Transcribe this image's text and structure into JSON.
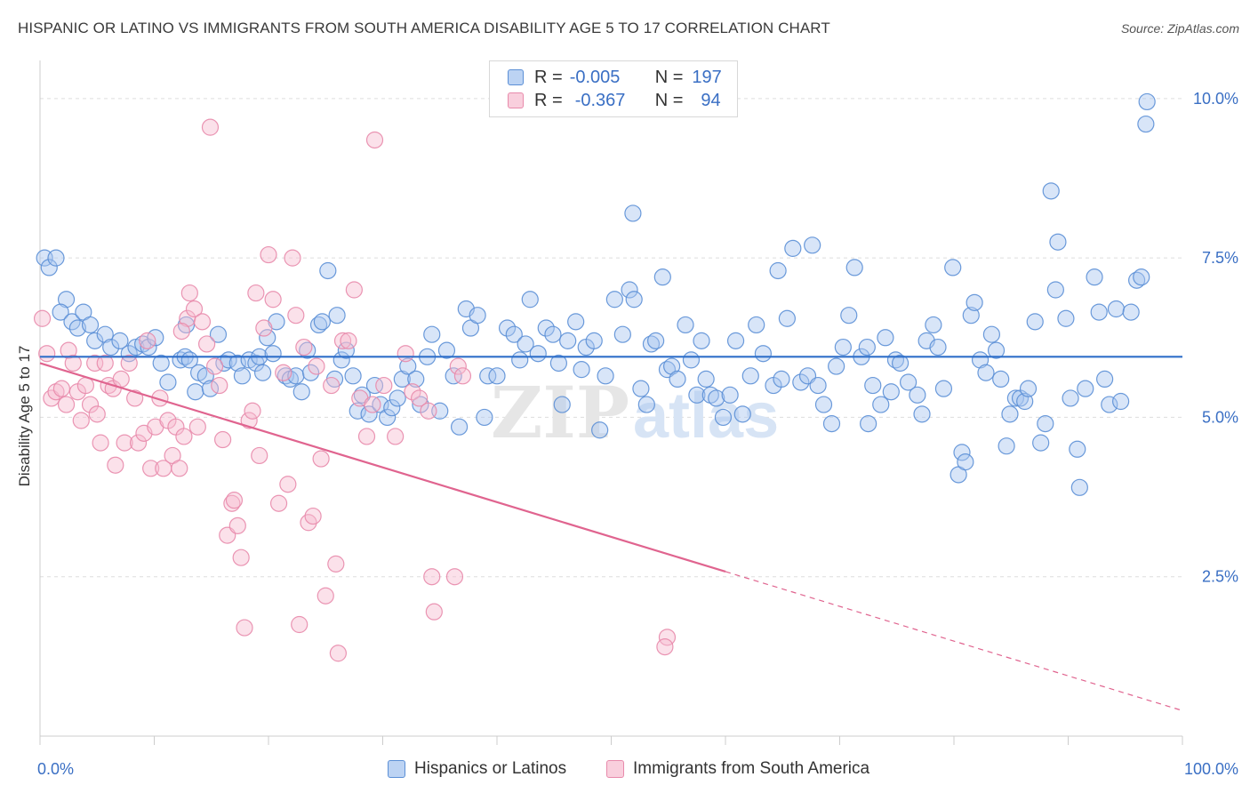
{
  "title": "HISPANIC OR LATINO VS IMMIGRANTS FROM SOUTH AMERICA DISABILITY AGE 5 TO 17 CORRELATION CHART",
  "source": "Source: ZipAtlas.com",
  "watermark": {
    "zip": "ZIP",
    "atlas": "atlas"
  },
  "legend": {
    "rows": [
      {
        "r_label": "R =",
        "r_value": "-0.005",
        "n_label": "N =",
        "n_value": "197"
      },
      {
        "r_label": "R =",
        "r_value": "-0.367",
        "n_label": "N =",
        "n_value": "94"
      }
    ]
  },
  "colors": {
    "blue_fill": "#a9c6f0",
    "blue_stroke": "#5b8fd6",
    "blue_line": "#2f6fc9",
    "pink_fill": "#f7bcd0",
    "pink_stroke": "#e88aab",
    "pink_line": "#e0648f",
    "axis_text": "#3a6fc4",
    "grid": "#dddddd"
  },
  "chart_data": {
    "type": "scatter",
    "title": "HISPANIC OR LATINO VS IMMIGRANTS FROM SOUTH AMERICA DISABILITY AGE 5 TO 17 CORRELATION CHART",
    "xlabel": "",
    "ylabel": "Disability Age 5 to 17",
    "xlim": [
      0,
      100
    ],
    "ylim": [
      0,
      10.5
    ],
    "x_tick_labels": [
      "0.0%",
      "100.0%"
    ],
    "y_ticks": [
      2.5,
      5.0,
      7.5,
      10.0
    ],
    "y_tick_labels": [
      "2.5%",
      "5.0%",
      "7.5%",
      "10.0%"
    ],
    "grid": "horizontal dashed",
    "legend_position": "top-center",
    "series": [
      {
        "name": "Hispanics or Latinos",
        "r": -0.005,
        "n": 197,
        "trend": {
          "x": [
            0,
            100
          ],
          "y": [
            5.95,
            5.95
          ],
          "dashed_from": null
        },
        "points": [
          [
            0.4,
            7.5
          ],
          [
            0.8,
            7.35
          ],
          [
            1.4,
            7.5
          ],
          [
            2.3,
            6.85
          ],
          [
            1.8,
            6.65
          ],
          [
            2.8,
            6.5
          ],
          [
            3.3,
            6.4
          ],
          [
            3.8,
            6.65
          ],
          [
            4.4,
            6.45
          ],
          [
            4.8,
            6.2
          ],
          [
            5.7,
            6.3
          ],
          [
            6.2,
            6.1
          ],
          [
            7.0,
            6.2
          ],
          [
            7.8,
            6.0
          ],
          [
            8.4,
            6.1
          ],
          [
            9.0,
            6.15
          ],
          [
            9.5,
            6.1
          ],
          [
            10.1,
            6.25
          ],
          [
            10.6,
            5.85
          ],
          [
            11.2,
            5.55
          ],
          [
            12.3,
            5.9
          ],
          [
            12.7,
            5.95
          ],
          [
            13.1,
            5.9
          ],
          [
            12.8,
            6.45
          ],
          [
            13.6,
            5.4
          ],
          [
            13.9,
            5.7
          ],
          [
            14.5,
            5.65
          ],
          [
            14.9,
            5.45
          ],
          [
            15.6,
            6.3
          ],
          [
            16.1,
            5.85
          ],
          [
            16.5,
            5.9
          ],
          [
            17.3,
            5.85
          ],
          [
            17.7,
            5.65
          ],
          [
            18.3,
            5.9
          ],
          [
            18.9,
            5.85
          ],
          [
            19.2,
            5.95
          ],
          [
            19.5,
            5.7
          ],
          [
            19.9,
            6.25
          ],
          [
            20.4,
            6.0
          ],
          [
            20.7,
            6.5
          ],
          [
            21.5,
            5.65
          ],
          [
            21.9,
            5.6
          ],
          [
            22.4,
            5.65
          ],
          [
            22.9,
            5.4
          ],
          [
            23.4,
            6.05
          ],
          [
            23.7,
            5.7
          ],
          [
            24.4,
            6.45
          ],
          [
            24.7,
            6.5
          ],
          [
            25.2,
            7.3
          ],
          [
            25.8,
            5.6
          ],
          [
            26.0,
            6.6
          ],
          [
            26.4,
            5.9
          ],
          [
            26.8,
            6.05
          ],
          [
            27.4,
            5.65
          ],
          [
            27.8,
            5.1
          ],
          [
            28.2,
            5.35
          ],
          [
            28.8,
            5.05
          ],
          [
            29.3,
            5.5
          ],
          [
            29.8,
            5.2
          ],
          [
            30.4,
            5.0
          ],
          [
            30.8,
            5.15
          ],
          [
            31.3,
            5.3
          ],
          [
            31.7,
            5.6
          ],
          [
            32.2,
            5.8
          ],
          [
            32.9,
            5.6
          ],
          [
            33.3,
            5.2
          ],
          [
            33.9,
            5.95
          ],
          [
            34.3,
            6.3
          ],
          [
            35.0,
            5.1
          ],
          [
            35.6,
            6.05
          ],
          [
            36.2,
            5.65
          ],
          [
            36.7,
            4.85
          ],
          [
            37.3,
            6.7
          ],
          [
            37.7,
            6.4
          ],
          [
            38.3,
            6.6
          ],
          [
            38.9,
            5.0
          ],
          [
            39.2,
            5.65
          ],
          [
            40.0,
            5.65
          ],
          [
            40.9,
            6.4
          ],
          [
            41.5,
            6.3
          ],
          [
            42.0,
            5.9
          ],
          [
            42.5,
            6.15
          ],
          [
            42.9,
            6.85
          ],
          [
            43.6,
            6.0
          ],
          [
            44.3,
            6.4
          ],
          [
            44.9,
            6.3
          ],
          [
            45.4,
            5.85
          ],
          [
            45.7,
            5.2
          ],
          [
            46.2,
            6.2
          ],
          [
            46.9,
            6.5
          ],
          [
            47.4,
            5.75
          ],
          [
            47.8,
            6.1
          ],
          [
            48.5,
            6.2
          ],
          [
            49.0,
            4.8
          ],
          [
            49.5,
            5.65
          ],
          [
            50.3,
            6.85
          ],
          [
            51.0,
            6.3
          ],
          [
            51.6,
            7.0
          ],
          [
            51.9,
            8.2
          ],
          [
            52.6,
            5.45
          ],
          [
            53.1,
            5.2
          ],
          [
            53.5,
            6.15
          ],
          [
            53.9,
            6.2
          ],
          [
            54.5,
            7.2
          ],
          [
            54.9,
            5.75
          ],
          [
            55.3,
            5.8
          ],
          [
            55.8,
            5.6
          ],
          [
            56.5,
            6.45
          ],
          [
            57.0,
            5.9
          ],
          [
            57.5,
            5.35
          ],
          [
            57.9,
            6.2
          ],
          [
            58.3,
            5.6
          ],
          [
            58.7,
            5.35
          ],
          [
            59.2,
            5.3
          ],
          [
            59.8,
            5.0
          ],
          [
            60.4,
            5.35
          ],
          [
            60.9,
            6.2
          ],
          [
            61.5,
            5.05
          ],
          [
            62.2,
            5.65
          ],
          [
            62.7,
            6.45
          ],
          [
            63.3,
            6.0
          ],
          [
            64.2,
            5.5
          ],
          [
            64.6,
            7.3
          ],
          [
            64.9,
            5.6
          ],
          [
            65.4,
            6.55
          ],
          [
            65.9,
            7.65
          ],
          [
            66.6,
            5.55
          ],
          [
            67.2,
            5.65
          ],
          [
            67.6,
            7.7
          ],
          [
            68.1,
            5.5
          ],
          [
            68.6,
            5.2
          ],
          [
            69.3,
            4.9
          ],
          [
            69.7,
            5.8
          ],
          [
            70.3,
            6.1
          ],
          [
            70.8,
            6.6
          ],
          [
            71.3,
            7.35
          ],
          [
            71.9,
            5.95
          ],
          [
            72.4,
            6.1
          ],
          [
            72.9,
            5.5
          ],
          [
            73.6,
            5.2
          ],
          [
            74.0,
            6.25
          ],
          [
            74.5,
            5.4
          ],
          [
            74.9,
            5.9
          ],
          [
            75.3,
            5.85
          ],
          [
            76.0,
            5.55
          ],
          [
            76.8,
            5.35
          ],
          [
            77.2,
            5.05
          ],
          [
            77.6,
            6.2
          ],
          [
            78.2,
            6.45
          ],
          [
            78.6,
            6.1
          ],
          [
            79.1,
            5.45
          ],
          [
            79.9,
            7.35
          ],
          [
            80.4,
            4.1
          ],
          [
            80.7,
            4.45
          ],
          [
            81.0,
            4.3
          ],
          [
            81.5,
            6.6
          ],
          [
            81.8,
            6.8
          ],
          [
            82.3,
            5.9
          ],
          [
            82.8,
            5.7
          ],
          [
            83.3,
            6.3
          ],
          [
            83.7,
            6.05
          ],
          [
            84.1,
            5.6
          ],
          [
            84.6,
            4.55
          ],
          [
            84.9,
            5.05
          ],
          [
            85.4,
            5.3
          ],
          [
            85.8,
            5.3
          ],
          [
            86.2,
            5.25
          ],
          [
            86.5,
            5.45
          ],
          [
            87.1,
            6.5
          ],
          [
            87.6,
            4.6
          ],
          [
            88.0,
            4.9
          ],
          [
            88.5,
            8.55
          ],
          [
            88.9,
            7.0
          ],
          [
            89.1,
            7.75
          ],
          [
            89.8,
            6.55
          ],
          [
            90.2,
            5.3
          ],
          [
            90.8,
            4.5
          ],
          [
            91.0,
            3.9
          ],
          [
            91.5,
            5.45
          ],
          [
            92.3,
            7.2
          ],
          [
            92.7,
            6.65
          ],
          [
            93.2,
            5.6
          ],
          [
            93.6,
            5.2
          ],
          [
            94.2,
            6.7
          ],
          [
            94.6,
            5.25
          ],
          [
            95.5,
            6.65
          ],
          [
            96.0,
            7.15
          ],
          [
            96.4,
            7.2
          ],
          [
            96.9,
            9.95
          ],
          [
            96.8,
            9.6
          ],
          [
            72.5,
            4.9
          ],
          [
            52.0,
            6.85
          ]
        ]
      },
      {
        "name": "Immigrants from South America",
        "r": -0.367,
        "n": 94,
        "trend": {
          "x": [
            0,
            100
          ],
          "y": [
            5.85,
            0.4
          ],
          "solid_until_x": 60
        },
        "points": [
          [
            0.2,
            6.55
          ],
          [
            0.6,
            6.0
          ],
          [
            1.0,
            5.3
          ],
          [
            1.4,
            5.4
          ],
          [
            1.9,
            5.45
          ],
          [
            2.3,
            5.2
          ],
          [
            2.5,
            6.05
          ],
          [
            2.9,
            5.85
          ],
          [
            3.3,
            5.4
          ],
          [
            3.6,
            4.95
          ],
          [
            4.0,
            5.5
          ],
          [
            4.4,
            5.2
          ],
          [
            4.8,
            5.85
          ],
          [
            5.0,
            5.05
          ],
          [
            5.3,
            4.6
          ],
          [
            5.7,
            5.85
          ],
          [
            6.0,
            5.5
          ],
          [
            6.4,
            5.45
          ],
          [
            6.6,
            4.25
          ],
          [
            7.1,
            5.6
          ],
          [
            7.4,
            4.6
          ],
          [
            7.8,
            5.85
          ],
          [
            8.3,
            5.3
          ],
          [
            8.6,
            4.6
          ],
          [
            9.1,
            4.75
          ],
          [
            9.4,
            6.2
          ],
          [
            9.7,
            4.2
          ],
          [
            10.1,
            4.85
          ],
          [
            10.5,
            5.3
          ],
          [
            10.8,
            4.2
          ],
          [
            11.2,
            4.95
          ],
          [
            11.6,
            4.4
          ],
          [
            11.9,
            4.85
          ],
          [
            12.2,
            4.2
          ],
          [
            12.6,
            4.7
          ],
          [
            12.9,
            6.55
          ],
          [
            13.1,
            6.95
          ],
          [
            13.5,
            6.7
          ],
          [
            13.8,
            4.85
          ],
          [
            14.2,
            6.5
          ],
          [
            14.6,
            6.15
          ],
          [
            14.9,
            9.55
          ],
          [
            15.3,
            5.8
          ],
          [
            15.7,
            5.5
          ],
          [
            16.0,
            4.65
          ],
          [
            16.4,
            3.15
          ],
          [
            16.8,
            3.65
          ],
          [
            17.0,
            3.7
          ],
          [
            17.3,
            3.3
          ],
          [
            17.6,
            2.8
          ],
          [
            17.9,
            1.7
          ],
          [
            18.3,
            4.95
          ],
          [
            18.6,
            5.1
          ],
          [
            18.9,
            6.95
          ],
          [
            19.2,
            4.4
          ],
          [
            19.6,
            6.4
          ],
          [
            20.0,
            7.55
          ],
          [
            20.4,
            6.85
          ],
          [
            20.9,
            3.65
          ],
          [
            21.3,
            5.7
          ],
          [
            21.7,
            3.95
          ],
          [
            22.1,
            7.5
          ],
          [
            22.4,
            6.6
          ],
          [
            22.7,
            1.75
          ],
          [
            23.1,
            6.1
          ],
          [
            23.5,
            3.35
          ],
          [
            23.9,
            3.45
          ],
          [
            24.2,
            5.8
          ],
          [
            24.6,
            4.35
          ],
          [
            25.0,
            2.2
          ],
          [
            25.5,
            5.5
          ],
          [
            25.9,
            2.7
          ],
          [
            26.1,
            1.3
          ],
          [
            26.5,
            6.2
          ],
          [
            27.0,
            6.2
          ],
          [
            27.5,
            7.0
          ],
          [
            28.0,
            5.3
          ],
          [
            28.6,
            4.7
          ],
          [
            29.1,
            5.2
          ],
          [
            29.3,
            9.35
          ],
          [
            30.1,
            5.5
          ],
          [
            32.0,
            6.0
          ],
          [
            32.6,
            5.4
          ],
          [
            33.2,
            5.3
          ],
          [
            34.0,
            5.1
          ],
          [
            34.5,
            1.95
          ],
          [
            34.3,
            2.5
          ],
          [
            36.3,
            2.5
          ],
          [
            36.6,
            5.8
          ],
          [
            37.0,
            5.65
          ],
          [
            54.9,
            1.55
          ],
          [
            54.7,
            1.4
          ],
          [
            12.4,
            6.35
          ],
          [
            31.1,
            4.7
          ]
        ]
      }
    ]
  },
  "bottom_legend": [
    {
      "label": "Hispanics or Latinos"
    },
    {
      "label": "Immigrants from South America"
    }
  ]
}
